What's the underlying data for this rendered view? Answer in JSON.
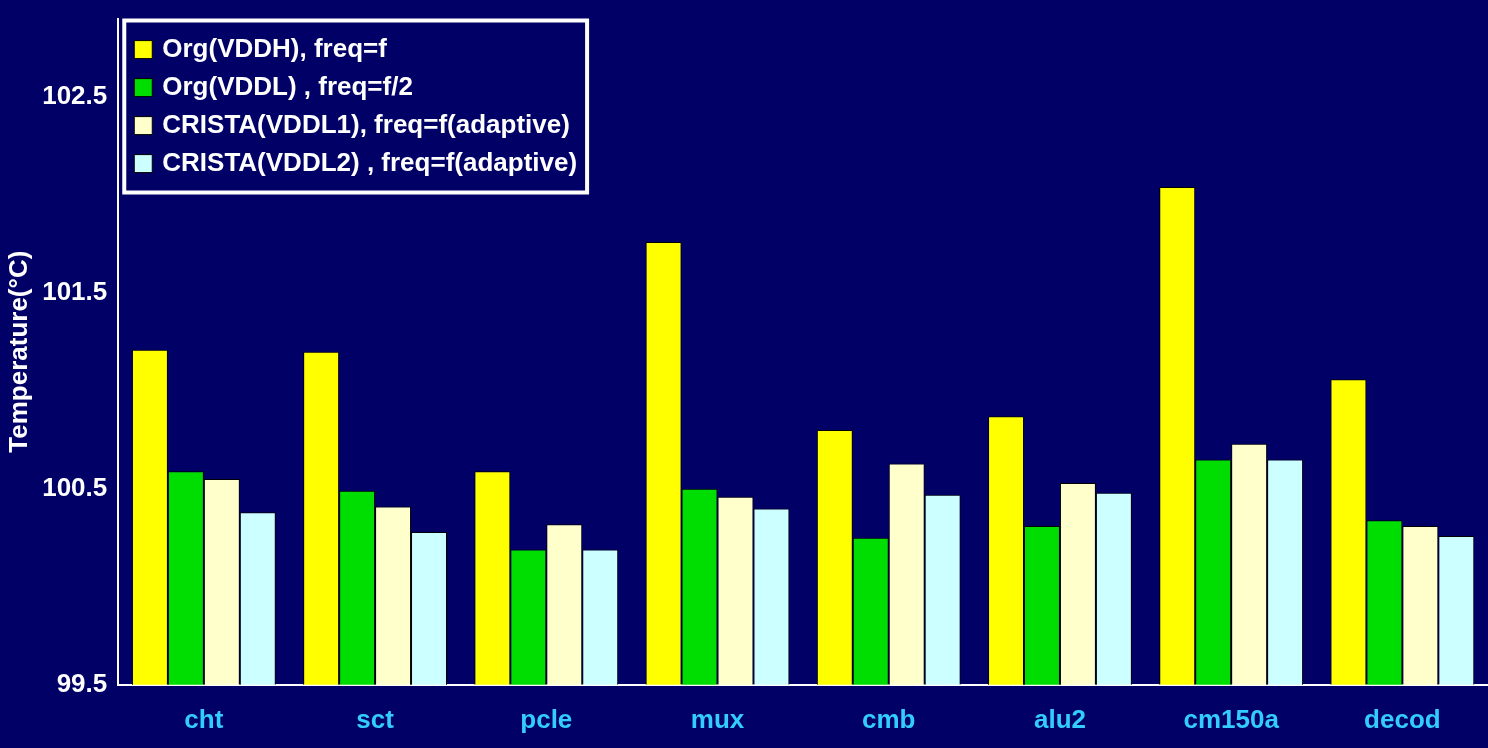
{
  "chart_data": {
    "type": "bar",
    "ylabel": "Temperature(°C)",
    "categories": [
      "cht",
      "sct",
      "pcle",
      "mux",
      "cmb",
      "alu2",
      "cm150a",
      "decod"
    ],
    "series": [
      {
        "name": "Org(VDDH), freq=f",
        "color": "#ffff00",
        "values": [
          101.21,
          101.2,
          100.59,
          101.76,
          100.8,
          100.87,
          102.04,
          101.06
        ]
      },
      {
        "name": "Org(VDDL) , freq=f/2",
        "color": "#00dd00",
        "values": [
          100.59,
          100.49,
          100.19,
          100.5,
          100.25,
          100.31,
          100.65,
          100.34
        ]
      },
      {
        "name": "CRISTA(VDDL1), freq=f(adaptive)",
        "color": "#ffffcc",
        "values": [
          100.55,
          100.41,
          100.32,
          100.46,
          100.63,
          100.53,
          100.73,
          100.31
        ]
      },
      {
        "name": "CRISTA(VDDL2) , freq=f(adaptive)",
        "color": "#ccffff",
        "values": [
          100.38,
          100.28,
          100.19,
          100.4,
          100.47,
          100.48,
          100.65,
          100.26
        ]
      }
    ],
    "ylim": [
      99.5,
      102.9
    ],
    "yticks": [
      99.5,
      100.5,
      101.5,
      102.5
    ],
    "grid": false,
    "legend": "top left"
  }
}
